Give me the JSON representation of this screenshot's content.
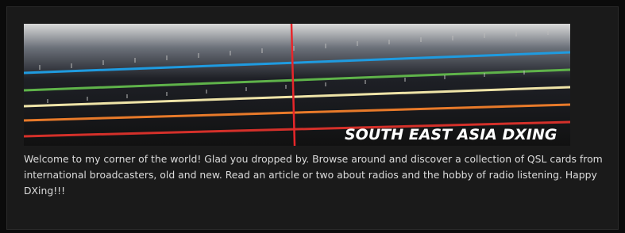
{
  "header": {
    "title": "SOUTH EAST ASIA DXING"
  },
  "description": "Welcome to my corner of the world! Glad you dropped by. Browse around and discover a collection of QSL cards from international broadcasters, old and new. Read an article or two about radios and the hobby of radio listening. Happy DXing!!!"
}
